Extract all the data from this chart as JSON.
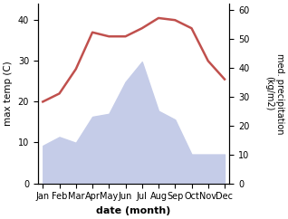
{
  "months": [
    "Jan",
    "Feb",
    "Mar",
    "Apr",
    "May",
    "Jun",
    "Jul",
    "Aug",
    "Sep",
    "Oct",
    "Nov",
    "Dec"
  ],
  "month_positions": [
    1,
    2,
    3,
    4,
    5,
    6,
    7,
    8,
    9,
    10,
    11,
    12
  ],
  "temperature": [
    20,
    22,
    28,
    37,
    36,
    36,
    38,
    40.5,
    40,
    38,
    30,
    25.5
  ],
  "precipitation": [
    13,
    16,
    14,
    23,
    24,
    35,
    42,
    25,
    22,
    10,
    10,
    10
  ],
  "temp_color": "#c0504d",
  "precip_fill_color": "#c5cce8",
  "xlabel": "date (month)",
  "ylabel_left": "max temp (C)",
  "ylabel_right": "med. precipitation\n(kg/m2)",
  "ylim_left": [
    0,
    44
  ],
  "ylim_right": [
    0,
    62
  ],
  "yticks_left": [
    0,
    10,
    20,
    30,
    40
  ],
  "yticks_right": [
    0,
    10,
    20,
    30,
    40,
    50,
    60
  ],
  "figsize": [
    3.18,
    2.42
  ],
  "dpi": 100
}
